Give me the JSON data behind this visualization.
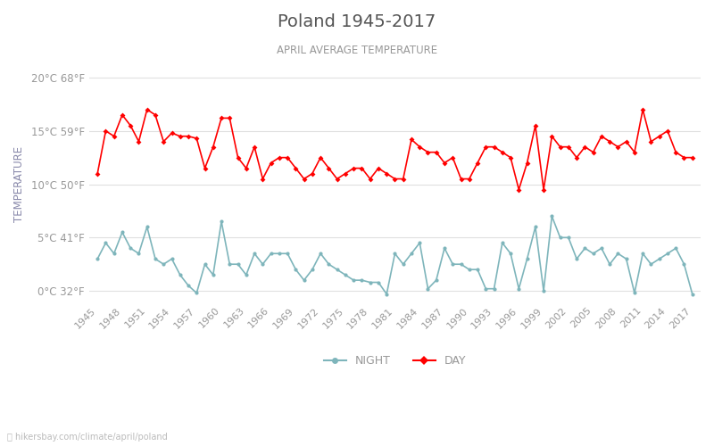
{
  "title": "Poland 1945-2017",
  "subtitle": "APRIL AVERAGE TEMPERATURE",
  "ylabel": "TEMPERATURE",
  "xlabel_url": "hikersbay.com/climate/april/poland",
  "years": [
    1945,
    1946,
    1947,
    1948,
    1949,
    1950,
    1951,
    1952,
    1953,
    1954,
    1955,
    1956,
    1957,
    1958,
    1959,
    1960,
    1961,
    1962,
    1963,
    1964,
    1965,
    1966,
    1967,
    1968,
    1969,
    1970,
    1971,
    1972,
    1973,
    1974,
    1975,
    1976,
    1977,
    1978,
    1979,
    1980,
    1981,
    1982,
    1983,
    1984,
    1985,
    1986,
    1987,
    1988,
    1989,
    1990,
    1991,
    1992,
    1993,
    1994,
    1995,
    1996,
    1997,
    1998,
    1999,
    2000,
    2001,
    2002,
    2003,
    2004,
    2005,
    2006,
    2007,
    2008,
    2009,
    2010,
    2011,
    2012,
    2013,
    2014,
    2015,
    2016,
    2017
  ],
  "day_temps": [
    11.0,
    15.0,
    14.5,
    16.5,
    15.5,
    14.0,
    17.0,
    16.5,
    14.0,
    14.8,
    14.5,
    14.5,
    14.3,
    11.5,
    13.5,
    16.2,
    16.2,
    12.5,
    11.5,
    13.5,
    10.5,
    12.0,
    12.5,
    12.5,
    11.5,
    10.5,
    11.0,
    12.5,
    11.5,
    10.5,
    11.0,
    11.5,
    11.5,
    10.5,
    11.5,
    11.0,
    10.5,
    10.5,
    14.2,
    13.5,
    13.0,
    13.0,
    12.0,
    12.5,
    10.5,
    10.5,
    12.0,
    13.5,
    13.5,
    13.0,
    12.5,
    9.5,
    12.0,
    15.5,
    9.5,
    14.5,
    13.5,
    13.5,
    12.5,
    13.5,
    13.0,
    14.5,
    14.0,
    13.5,
    14.0,
    13.0,
    17.0,
    14.0,
    14.5,
    15.0,
    13.0,
    12.5,
    12.5
  ],
  "night_temps": [
    3.0,
    4.5,
    3.5,
    5.5,
    4.0,
    3.5,
    6.0,
    3.0,
    2.5,
    3.0,
    1.5,
    0.5,
    -0.2,
    2.5,
    1.5,
    6.5,
    2.5,
    2.5,
    1.5,
    3.5,
    2.5,
    3.5,
    3.5,
    3.5,
    2.0,
    1.0,
    2.0,
    3.5,
    2.5,
    2.0,
    1.5,
    1.0,
    1.0,
    0.8,
    0.8,
    -0.3,
    3.5,
    2.5,
    3.5,
    4.5,
    0.2,
    1.0,
    4.0,
    2.5,
    2.5,
    2.0,
    2.0,
    0.2,
    0.2,
    4.5,
    3.5,
    0.2,
    3.0,
    6.0,
    0.0,
    7.0,
    5.0,
    5.0,
    3.0,
    4.0,
    3.5,
    4.0,
    2.5,
    3.5,
    3.0,
    -0.2,
    3.5,
    2.5,
    3.0,
    3.5,
    4.0,
    2.5,
    -0.3
  ],
  "day_color": "#ff0000",
  "night_color": "#7eb5bb",
  "background_color": "#ffffff",
  "grid_color": "#e0e0e0",
  "title_color": "#555555",
  "subtitle_color": "#999999",
  "ylabel_color": "#8888aa",
  "tick_label_color": "#999999",
  "yticks_celsius": [
    0,
    5,
    10,
    15,
    20
  ],
  "yticks_fahrenheit": [
    32,
    41,
    50,
    59,
    68
  ],
  "xtick_years": [
    1945,
    1948,
    1951,
    1954,
    1957,
    1960,
    1963,
    1966,
    1969,
    1972,
    1975,
    1978,
    1981,
    1984,
    1987,
    1990,
    1993,
    1996,
    1999,
    2002,
    2005,
    2008,
    2011,
    2014,
    2017
  ],
  "legend_night_label": "NIGHT",
  "legend_day_label": "DAY",
  "marker_size": 3,
  "line_width": 1.2
}
